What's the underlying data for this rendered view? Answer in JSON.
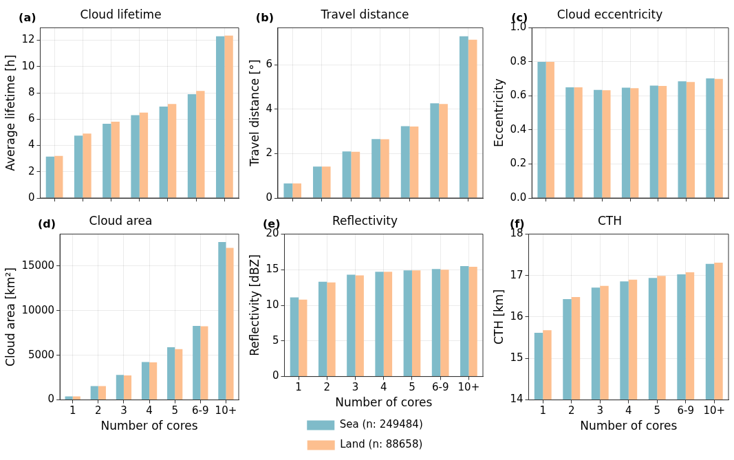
{
  "chart_data": [
    {
      "type": "bar",
      "title": "Cloud lifetime",
      "ylabel": "Average lifetime [h]",
      "annotations": [
        "(a)"
      ],
      "categories": [
        null,
        null,
        null,
        null,
        null,
        null,
        null
      ],
      "series": [
        {
          "color": "#7fbbc9",
          "values": [
            3.15,
            4.75,
            5.65,
            6.3,
            6.95,
            7.9,
            12.3
          ]
        },
        {
          "color": "#fdbf8f",
          "values": [
            3.2,
            4.9,
            5.8,
            6.5,
            7.15,
            8.15,
            12.35
          ]
        }
      ],
      "ylim": [
        0,
        12.95
      ],
      "yticks": [
        0,
        2,
        4,
        6,
        8,
        10,
        12
      ],
      "grid": true,
      "tick_labels": "y"
    },
    {
      "type": "bar",
      "title": "Travel distance",
      "ylabel": "Travel distance [°]",
      "annotations": [
        "(b)"
      ],
      "categories": [
        null,
        null,
        null,
        null,
        null,
        null,
        null
      ],
      "series": [
        {
          "color": "#7fbbc9",
          "values": [
            0.66,
            1.42,
            2.1,
            2.66,
            3.24,
            4.27,
            7.29
          ]
        },
        {
          "color": "#fdbf8f",
          "values": [
            0.66,
            1.42,
            2.08,
            2.65,
            3.22,
            4.24,
            7.13
          ]
        }
      ],
      "ylim": [
        0,
        7.67
      ],
      "yticks": [
        0,
        2,
        4,
        6
      ],
      "grid": true,
      "tick_labels": "y"
    },
    {
      "type": "bar",
      "title": "Cloud eccentricity",
      "ylabel": "Eccentricity",
      "annotations": [
        "(c)"
      ],
      "categories": [
        null,
        null,
        null,
        null,
        null,
        null,
        null
      ],
      "series": [
        {
          "color": "#7fbbc9",
          "values": [
            0.8,
            0.65,
            0.635,
            0.648,
            0.66,
            0.686,
            0.703
          ]
        },
        {
          "color": "#fdbf8f",
          "values": [
            0.8,
            0.65,
            0.633,
            0.645,
            0.658,
            0.682,
            0.7
          ]
        }
      ],
      "ylim": [
        0,
        1
      ],
      "yticks": [
        {
          "value": 0,
          "label": "0.0"
        },
        0.2,
        0.4,
        0.6,
        0.8,
        {
          "value": 1,
          "label": "1.0"
        }
      ],
      "grid": true,
      "tick_labels": "y"
    },
    {
      "type": "bar",
      "title": "Cloud area",
      "xlabel": "Number of cores",
      "ylabel": "Cloud area [km²]",
      "annotations": [
        "(d)"
      ],
      "categories": [
        "1",
        "2",
        "3",
        "4",
        "5",
        "6-9",
        "10+"
      ],
      "series": [
        {
          "color": "#7fbbc9",
          "values": [
            400,
            1550,
            2800,
            4250,
            5900,
            8300,
            17700
          ]
        },
        {
          "color": "#fdbf8f",
          "values": [
            400,
            1550,
            2750,
            4200,
            5700,
            8250,
            17050
          ]
        }
      ],
      "ylim": [
        0,
        18590
      ],
      "yticks": [
        0,
        5000,
        10000,
        15000
      ],
      "grid": true
    },
    {
      "type": "bar",
      "title": "Reflectivity",
      "xlabel": "Number of cores",
      "ylabel": "Reflectivity [dBZ]",
      "annotations": [
        "(e)"
      ],
      "categories": [
        "1",
        "2",
        "3",
        "4",
        "5",
        "6-9",
        "10+"
      ],
      "series": [
        {
          "name": "Sea (n: 249484)",
          "color": "#7fbbc9",
          "values": [
            11.1,
            13.3,
            14.3,
            14.7,
            14.9,
            15.1,
            15.5
          ]
        },
        {
          "name": "Land (n: 88658)",
          "color": "#fdbf8f",
          "values": [
            10.8,
            13.2,
            14.2,
            14.7,
            14.9,
            15,
            15.4
          ]
        }
      ],
      "ylim": [
        0,
        20
      ],
      "yticks": [
        0,
        5,
        10,
        15,
        20
      ],
      "grid": true,
      "legend": "bottom"
    },
    {
      "type": "bar",
      "title": "CTH",
      "xlabel": "Number of cores",
      "ylabel": "CTH [km]",
      "annotations": [
        "(f)"
      ],
      "categories": [
        "1",
        "2",
        "3",
        "4",
        "5",
        "6-9",
        "10+"
      ],
      "series": [
        {
          "color": "#7fbbc9",
          "values": [
            15.62,
            16.43,
            16.71,
            16.86,
            16.94,
            17.03,
            17.28
          ]
        },
        {
          "color": "#fdbf8f",
          "values": [
            15.68,
            16.48,
            16.75,
            16.9,
            16.99,
            17.08,
            17.31
          ]
        }
      ],
      "ylim": [
        14,
        18
      ],
      "yticks": [
        14,
        15,
        16,
        17,
        18
      ],
      "grid": true
    }
  ]
}
